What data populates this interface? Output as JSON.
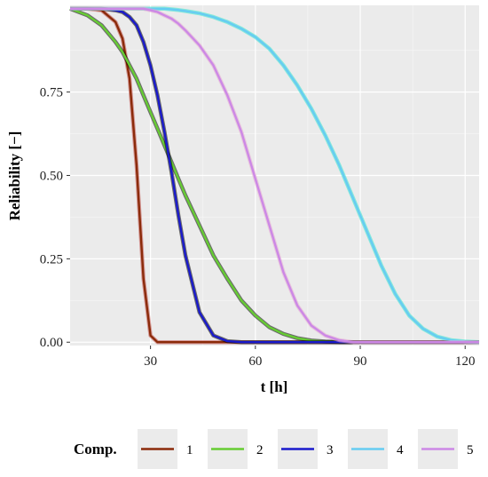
{
  "chart_data": {
    "type": "line",
    "title": "",
    "xlabel": "t [h]",
    "ylabel": "Reliability [−]",
    "xlim": [
      7,
      124
    ],
    "ylim": [
      -0.01,
      1.01
    ],
    "x_ticks": [
      30,
      60,
      90,
      120
    ],
    "y_ticks": [
      0.0,
      0.25,
      0.5,
      0.75
    ],
    "y_tick_labels": [
      "0.00",
      "0.25",
      "0.50",
      "0.75"
    ],
    "grid": true,
    "legend": {
      "title": "Comp.",
      "placement": "bottom",
      "entries": [
        "1",
        "2",
        "3",
        "4",
        "5"
      ]
    },
    "x": [
      7,
      12,
      16,
      20,
      22,
      24,
      26,
      28,
      30,
      32,
      34,
      36,
      38,
      40,
      44,
      48,
      52,
      56,
      60,
      64,
      68,
      72,
      76,
      80,
      84,
      88,
      92,
      96,
      100,
      104,
      108,
      112,
      116,
      120,
      124
    ],
    "series": [
      {
        "name": "1",
        "color": "#8B2B0A",
        "outline": "#c0504d",
        "values": [
          1.0,
          1.0,
          0.995,
          0.96,
          0.91,
          0.79,
          0.53,
          0.19,
          0.02,
          0.0,
          0.0,
          0.0,
          0.0,
          0.0,
          0.0,
          0.0,
          0.0,
          0.0,
          0.0,
          0.0,
          0.0,
          0.0,
          0.0,
          0.0,
          0.0,
          0.0,
          0.0,
          0.0,
          0.0,
          0.0,
          0.0,
          0.0,
          0.0,
          0.0,
          0.0
        ]
      },
      {
        "name": "2",
        "color": "#66CC33",
        "outline": "#000000",
        "values": [
          1.0,
          0.98,
          0.95,
          0.9,
          0.87,
          0.83,
          0.79,
          0.74,
          0.69,
          0.64,
          0.59,
          0.54,
          0.49,
          0.44,
          0.35,
          0.26,
          0.19,
          0.125,
          0.08,
          0.045,
          0.025,
          0.012,
          0.005,
          0.002,
          0.0,
          0.0,
          0.0,
          0.0,
          0.0,
          0.0,
          0.0,
          0.0,
          0.0,
          0.0,
          0.0
        ]
      },
      {
        "name": "3",
        "color": "#1A1ACC",
        "outline": "#000000",
        "values": [
          1.0,
          1.0,
          1.0,
          0.995,
          0.99,
          0.975,
          0.95,
          0.9,
          0.83,
          0.74,
          0.63,
          0.51,
          0.38,
          0.26,
          0.09,
          0.02,
          0.003,
          0.0,
          0.0,
          0.0,
          0.0,
          0.0,
          0.0,
          0.0,
          0.0,
          0.0,
          0.0,
          0.0,
          0.0,
          0.0,
          0.0,
          0.0,
          0.0,
          0.0,
          0.0
        ]
      },
      {
        "name": "4",
        "color": "#66CCF2",
        "outline": "#33E6CC",
        "values": [
          1.0,
          1.0,
          1.0,
          1.0,
          1.0,
          1.0,
          1.0,
          1.0,
          1.0,
          1.0,
          1.0,
          0.998,
          0.996,
          0.993,
          0.986,
          0.975,
          0.96,
          0.94,
          0.915,
          0.88,
          0.83,
          0.77,
          0.7,
          0.62,
          0.53,
          0.43,
          0.33,
          0.23,
          0.145,
          0.08,
          0.04,
          0.017,
          0.006,
          0.002,
          0.0
        ]
      },
      {
        "name": "5",
        "color": "#CC88E6",
        "outline": "#e6a8d0",
        "values": [
          1.0,
          1.0,
          1.0,
          1.0,
          1.0,
          1.0,
          1.0,
          1.0,
          0.995,
          0.99,
          0.98,
          0.97,
          0.955,
          0.935,
          0.89,
          0.83,
          0.74,
          0.63,
          0.49,
          0.35,
          0.21,
          0.11,
          0.05,
          0.02,
          0.006,
          0.0,
          0.0,
          0.0,
          0.0,
          0.0,
          0.0,
          0.0,
          0.0,
          0.0,
          0.0
        ]
      }
    ]
  }
}
